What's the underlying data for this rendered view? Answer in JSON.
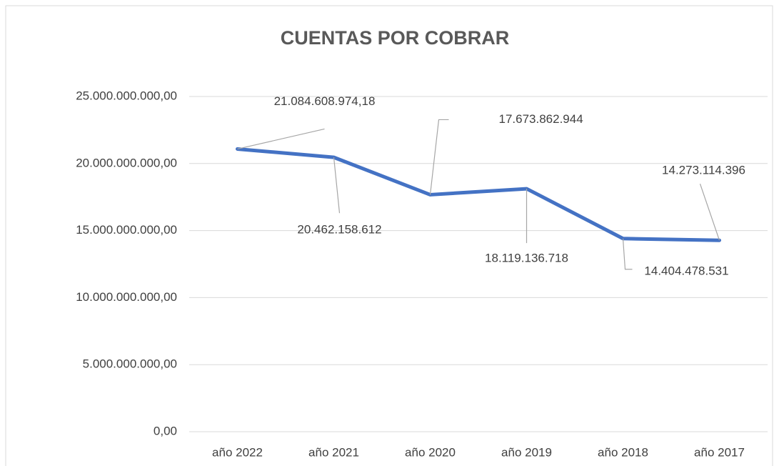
{
  "chart_data": {
    "type": "line",
    "title": "CUENTAS POR COBRAR",
    "categories": [
      "año 2022",
      "año 2021",
      "año 2020",
      "año 2019",
      "año 2018",
      "año 2017"
    ],
    "series": [
      {
        "color": "#4472c4",
        "values": [
          21084608974.18,
          20462158612,
          17673862944,
          18119136718,
          14404478531,
          14273114396
        ],
        "value_labels": [
          "21.084.608.974,18",
          "20.462.158.612",
          "17.673.862.944",
          "18.119.136.718",
          "14.404.478.531",
          "14.273.114.396"
        ]
      }
    ],
    "ylim": [
      0,
      25000000000
    ],
    "yticks": [
      {
        "value": 0,
        "label": "0,00"
      },
      {
        "value": 5000000000,
        "label": "5.000.000.000,00"
      },
      {
        "value": 10000000000,
        "label": "10.000.000.000,00"
      },
      {
        "value": 15000000000,
        "label": "15.000.000.000,00"
      },
      {
        "value": 20000000000,
        "label": "20.000.000.000,00"
      },
      {
        "value": 25000000000,
        "label": "25.000.000.000,00"
      }
    ],
    "grid": true
  }
}
